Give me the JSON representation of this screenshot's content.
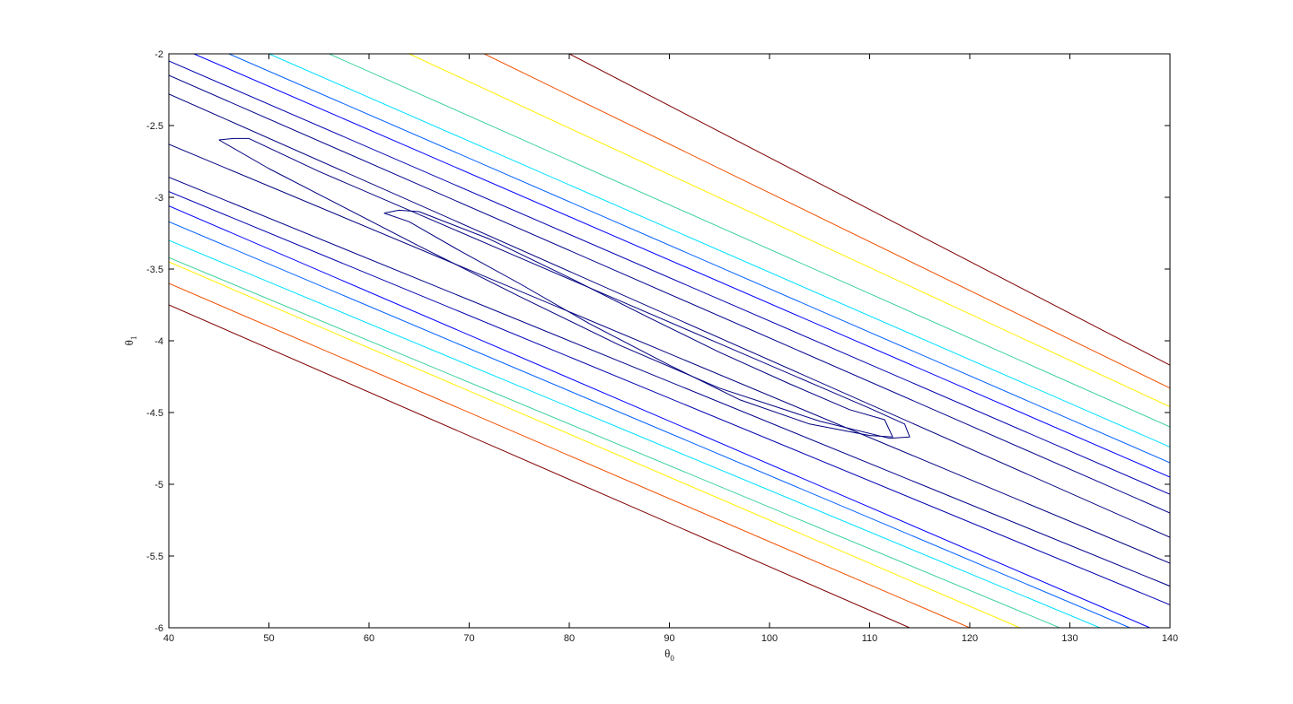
{
  "chart_data": {
    "type": "contour",
    "title": "",
    "xlabel": "θ",
    "xlabel_sub": "0",
    "ylabel": "θ",
    "ylabel_sub": "1",
    "xlim": [
      40,
      140
    ],
    "ylim": [
      -6,
      -2
    ],
    "xticks": [
      40,
      50,
      60,
      70,
      80,
      90,
      100,
      110,
      120,
      130,
      140
    ],
    "yticks": [
      -2,
      -2.5,
      -3,
      -3.5,
      -4,
      -4.5,
      -5,
      -5.5,
      -6
    ],
    "xtick_labels": [
      "40",
      "50",
      "60",
      "70",
      "80",
      "90",
      "100",
      "110",
      "120",
      "130",
      "140"
    ],
    "ytick_labels": [
      "-2",
      "-2.5",
      "-3",
      "-3.5",
      "-4",
      "-4.5",
      "-5",
      "-5.5",
      "-6"
    ],
    "grid": false,
    "colormap": "jet",
    "closed_contours": [
      {
        "name": "level-1",
        "color": "#00007f",
        "x": [
          45,
          46.5,
          48,
          55,
          65,
          75,
          85,
          95,
          105,
          110,
          113.5,
          114,
          112,
          105,
          95,
          85,
          75,
          65,
          55,
          50,
          45
        ],
        "y": [
          -2.6,
          -2.59,
          -2.59,
          -2.82,
          -3.12,
          -3.42,
          -3.72,
          -4.02,
          -4.32,
          -4.47,
          -4.58,
          -4.67,
          -4.68,
          -4.56,
          -4.33,
          -4.03,
          -3.69,
          -3.34,
          -2.98,
          -2.8,
          -2.6
        ]
      },
      {
        "name": "level-0",
        "color": "#00007f",
        "x": [
          61.5,
          63,
          65,
          72,
          80,
          88,
          95,
          102,
          108,
          111.5,
          112.3,
          110,
          104,
          97,
          90,
          82,
          75,
          69,
          64,
          61.5
        ],
        "y": [
          -3.11,
          -3.09,
          -3.1,
          -3.29,
          -3.56,
          -3.84,
          -4.08,
          -4.3,
          -4.48,
          -4.55,
          -4.67,
          -4.66,
          -4.58,
          -4.41,
          -4.17,
          -3.88,
          -3.6,
          -3.37,
          -3.17,
          -3.11
        ]
      }
    ],
    "band_contours": [
      {
        "name": "level-2-upper",
        "color": "#00007f",
        "x": [
          40,
          140
        ],
        "y": [
          -2.28,
          -5.37
        ]
      },
      {
        "name": "level-2-lower",
        "color": "#00007f",
        "x": [
          40,
          140
        ],
        "y": [
          -2.63,
          -5.55
        ]
      },
      {
        "name": "level-3-upper",
        "color": "#00008b",
        "x": [
          40,
          140
        ],
        "y": [
          -2.15,
          -5.2
        ]
      },
      {
        "name": "level-3-lower",
        "color": "#00008b",
        "x": [
          40,
          140
        ],
        "y": [
          -2.86,
          -5.71
        ]
      },
      {
        "name": "level-4-upper",
        "color": "#0000b0",
        "x": [
          40,
          140
        ],
        "y": [
          -2.05,
          -5.07
        ]
      },
      {
        "name": "level-4-lower",
        "color": "#0000b0",
        "x": [
          40,
          140
        ],
        "y": [
          -2.96,
          -5.84
        ]
      },
      {
        "name": "level-5-upper",
        "color": "#0000ff",
        "x": [
          42.5,
          140
        ],
        "y": [
          -2,
          -4.95
        ]
      },
      {
        "name": "level-5-lower",
        "color": "#0000ff",
        "x": [
          40,
          138
        ],
        "y": [
          -3.06,
          -6
        ]
      },
      {
        "name": "level-6-upper",
        "color": "#005fff",
        "x": [
          46,
          140
        ],
        "y": [
          -2,
          -4.85
        ]
      },
      {
        "name": "level-6-lower",
        "color": "#005fff",
        "x": [
          40,
          136
        ],
        "y": [
          -3.17,
          -6
        ]
      },
      {
        "name": "level-7-upper",
        "color": "#00dfff",
        "x": [
          50,
          140
        ],
        "y": [
          -2,
          -4.74
        ]
      },
      {
        "name": "level-7-lower",
        "color": "#00dfff",
        "x": [
          40,
          133
        ],
        "y": [
          -3.3,
          -6
        ]
      },
      {
        "name": "level-8-upper",
        "color": "#3fd19b",
        "x": [
          56,
          140
        ],
        "y": [
          -2,
          -4.6
        ]
      },
      {
        "name": "level-8-lower",
        "color": "#3fd19b",
        "x": [
          40,
          129
        ],
        "y": [
          -3.42,
          -6
        ]
      },
      {
        "name": "level-9-upper",
        "color": "#ffef00",
        "x": [
          64,
          140
        ],
        "y": [
          -2,
          -4.46
        ]
      },
      {
        "name": "level-9-lower",
        "color": "#ffef00",
        "x": [
          40,
          125
        ],
        "y": [
          -3.45,
          -6
        ]
      },
      {
        "name": "level-10-upper",
        "color": "#ef4f00",
        "x": [
          71.5,
          140
        ],
        "y": [
          -2,
          -4.33
        ]
      },
      {
        "name": "level-10-lower",
        "color": "#ef4f00",
        "x": [
          40,
          120
        ],
        "y": [
          -3.6,
          -6
        ]
      },
      {
        "name": "level-11-upper",
        "color": "#7f0000",
        "x": [
          80,
          140
        ],
        "y": [
          -2,
          -4.17
        ]
      },
      {
        "name": "level-11-lower",
        "color": "#7f0000",
        "x": [
          40,
          114
        ],
        "y": [
          -3.75,
          -6
        ]
      }
    ]
  }
}
